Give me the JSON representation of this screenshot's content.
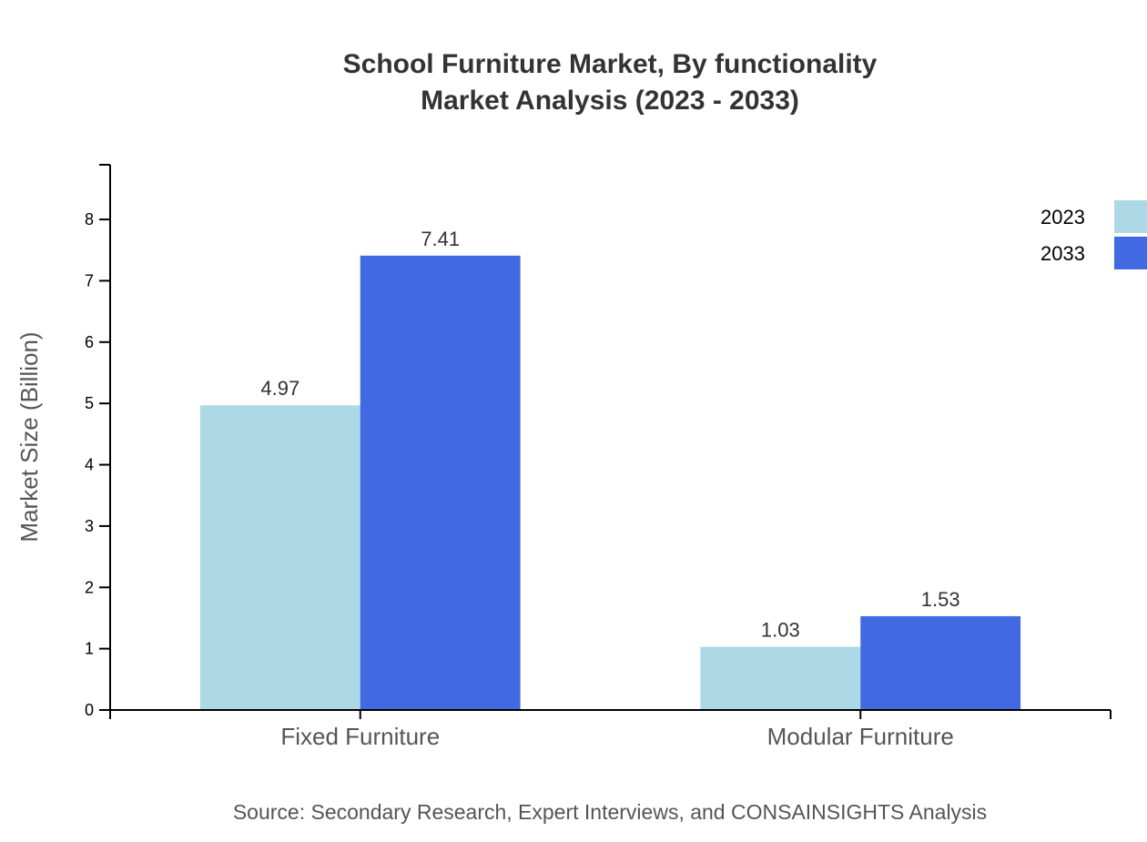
{
  "chart_data": {
    "type": "bar",
    "title_lines": [
      "School Furniture Market, By functionality",
      "Market Analysis (2023 - 2033)"
    ],
    "xlabel": "",
    "ylabel": "Market Size (Billion)",
    "categories": [
      "Fixed Furniture",
      "Modular Furniture"
    ],
    "series": [
      {
        "name": "2023",
        "values": [
          4.97,
          1.03
        ],
        "color": "#add8e6"
      },
      {
        "name": "2033",
        "values": [
          7.41,
          1.53
        ],
        "color": "#4169e1"
      }
    ],
    "ylim": [
      0,
      8.892
    ],
    "yticks": [
      0,
      1,
      2,
      3,
      4,
      5,
      6,
      7,
      8
    ],
    "grid": false,
    "legend_position": "top-right",
    "source": "Source: Secondary Research, Expert Interviews, and CONSAINSIGHTS Analysis"
  }
}
